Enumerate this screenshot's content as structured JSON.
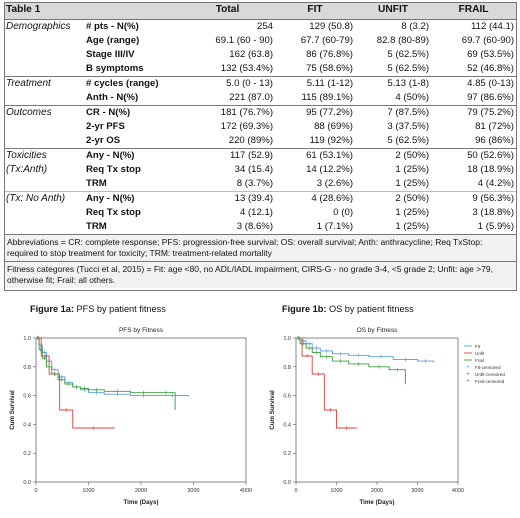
{
  "table": {
    "title": "Table 1",
    "columns": [
      "Total",
      "FIT",
      "UNFIT",
      "FRAIL"
    ],
    "rows": [
      {
        "group": "Demographics",
        "label": "# pts - N(%)",
        "total": "254",
        "fit": "129 (50.8)",
        "unfit": "8 (3.2)",
        "frail": "112 (44.1)"
      },
      {
        "group": "",
        "label": "Age (range)",
        "total": "69.1 (60 - 90)",
        "fit": "67.7 (60-79)",
        "unfit": "82.8 (80-89)",
        "frail": "69.7 (60-90)"
      },
      {
        "group": "",
        "label": "Stage III/IV",
        "total": "162 (63.8)",
        "fit": "86 (76.8%)",
        "unfit": "5 (62.5%)",
        "frail": "69 (53.5%)"
      },
      {
        "group": "",
        "label": "B symptoms",
        "total": "132 (53.4%)",
        "fit": "75 (58.6%)",
        "unfit": "5 (62.5%)",
        "frail": "52 (46.8%)"
      },
      {
        "group": "Treatment",
        "label": "# cycles (range)",
        "total": "5.0 (0 - 13)",
        "fit": "5.11 (1-12)",
        "unfit": "5.13 (1-8)",
        "frail": "4.85 (0-13)"
      },
      {
        "group": "",
        "label": "Anth - N(%)",
        "total": "221 (87.0)",
        "fit": "115 (89.1%)",
        "unfit": "4 (50%)",
        "frail": "97 (86.6%)"
      },
      {
        "group": "Outcomes",
        "label": "CR - N(%)",
        "total": "181 (76.7%)",
        "fit": "95 (77.2%)",
        "unfit": "7 (87.5%)",
        "frail": "79 (75.2%)"
      },
      {
        "group": "",
        "label": "2-yr PFS",
        "total": "172 (69.3%)",
        "fit": "88 (69%)",
        "unfit": "3 (37.5%)",
        "frail": "81 (72%)"
      },
      {
        "group": "",
        "label": "2-yr OS",
        "total": "220 (89%)",
        "fit": "119 (92%)",
        "unfit": "5 (62.5%)",
        "frail": "96 (86%)"
      },
      {
        "group": "Toxicities",
        "label": "Any - N(%)",
        "total": "117 (52.9)",
        "fit": "61 (53.1%)",
        "unfit": "2 (50%)",
        "frail": "50 (52.6%)"
      },
      {
        "group": "(Tx:Anth)",
        "label": "Req Tx stop",
        "total": "34 (15.4)",
        "fit": "14 (12.2%)",
        "unfit": "1 (25%)",
        "frail": "18 (18.9%)"
      },
      {
        "group": "",
        "label": "TRM",
        "total": "8 (3.7%)",
        "fit": "3 (2.6%)",
        "unfit": "1 (25%)",
        "frail": "4 (4.2%)"
      },
      {
        "group": "(Tx: No Anth)",
        "label": "Any - N(%)",
        "total": "13 (39.4)",
        "fit": "4 (28.6%)",
        "unfit": "2 (50%)",
        "frail": "9 (56.3%)"
      },
      {
        "group": "",
        "label": "Req Tx stop",
        "total": "4 (12.1)",
        "fit": "0 (0)",
        "unfit": "1 (25%)",
        "frail": "3 (18.8%)"
      },
      {
        "group": "",
        "label": "TRM",
        "total": "3 (8.6%)",
        "fit": "1 (7.1%)",
        "unfit": "1 (25%)",
        "frail": "1 (5.9%)"
      }
    ],
    "abbreviations": "Abbreviations = CR: complete response; PFS: progression-free survival; OS: overall survival; Anth: anthracycline; Req TxStop: required to stop treatment for toxicity; TRM: treatment-related mortality",
    "fitness_note": "Fitness categores (Tucci et al, 2015) = Fit: age <80, no ADL/IADL impairment, CIRS-G - no grade 3-4, <5 grade 2; Unfit: age >79, otherwise fit; Frail: all others."
  },
  "figure_1a": {
    "caption_bold": "Figure 1a:",
    "caption_rest": " PFS by patient fitness"
  },
  "figure_1b": {
    "caption_bold": "Figure 1b:",
    "caption_rest": " OS by patient fitness"
  },
  "colors": {
    "fit": "#5b9bd5",
    "unfit": "#e0403a",
    "frail": "#3a9b3a",
    "header_bg": "#d9d9d9"
  },
  "chart_data": [
    {
      "type": "line",
      "title": "PFS by Fitness",
      "xlabel": "Time (Days)",
      "ylabel": "Cum Survival",
      "xlim": [
        0,
        4000
      ],
      "ylim": [
        0,
        1.0
      ],
      "xticks": [
        "0",
        "1000",
        "2000",
        "3000",
        "4000"
      ],
      "yticks": [
        "0.0",
        "0.2",
        "0.4",
        "0.6",
        "0.8",
        "1.0"
      ],
      "series": [
        {
          "key": "fit",
          "x": [
            0,
            60,
            120,
            200,
            300,
            420,
            550,
            700,
            850,
            1000,
            1300,
            1800,
            2300,
            2900
          ],
          "y": [
            1.0,
            0.95,
            0.9,
            0.84,
            0.78,
            0.73,
            0.69,
            0.66,
            0.64,
            0.62,
            0.61,
            0.6,
            0.6,
            0.59
          ]
        },
        {
          "key": "unfit",
          "x": [
            0,
            100,
            250,
            450,
            700,
            1500
          ],
          "y": [
            1.0,
            0.875,
            0.75,
            0.5,
            0.375,
            0.375
          ]
        },
        {
          "key": "frail",
          "x": [
            0,
            60,
            120,
            200,
            300,
            420,
            550,
            700,
            850,
            1000,
            1300,
            1800,
            2300,
            2650
          ],
          "y": [
            1.0,
            0.92,
            0.86,
            0.8,
            0.75,
            0.71,
            0.68,
            0.66,
            0.65,
            0.64,
            0.63,
            0.62,
            0.62,
            0.5
          ]
        }
      ]
    },
    {
      "type": "line",
      "title": "OS by Fitness",
      "xlabel": "Time (Days)",
      "ylabel": "Cum Survival",
      "xlim": [
        0,
        4000
      ],
      "ylim": [
        0,
        1.0
      ],
      "xticks": [
        "0",
        "1000",
        "2000",
        "3000",
        "4000"
      ],
      "yticks": [
        "0.0",
        "0.2",
        "0.4",
        "0.6",
        "0.8",
        "1.0"
      ],
      "legend": [
        "Fit",
        "Unfit",
        "Frail",
        "Fit-censored",
        "Unfit-censored",
        "Frail-censored"
      ],
      "legend_position": "right",
      "series": [
        {
          "key": "fit",
          "x": [
            0,
            100,
            250,
            400,
            600,
            900,
            1300,
            1800,
            2400,
            3000,
            3400
          ],
          "y": [
            1.0,
            0.98,
            0.96,
            0.93,
            0.91,
            0.89,
            0.88,
            0.87,
            0.85,
            0.84,
            0.83
          ]
        },
        {
          "key": "unfit",
          "x": [
            0,
            150,
            400,
            700,
            1000,
            1500
          ],
          "y": [
            1.0,
            0.875,
            0.75,
            0.5,
            0.375,
            0.375
          ]
        },
        {
          "key": "frail",
          "x": [
            0,
            100,
            250,
            400,
            600,
            900,
            1300,
            1800,
            2300,
            2700
          ],
          "y": [
            1.0,
            0.96,
            0.93,
            0.9,
            0.87,
            0.84,
            0.82,
            0.8,
            0.78,
            0.68
          ]
        }
      ]
    }
  ]
}
